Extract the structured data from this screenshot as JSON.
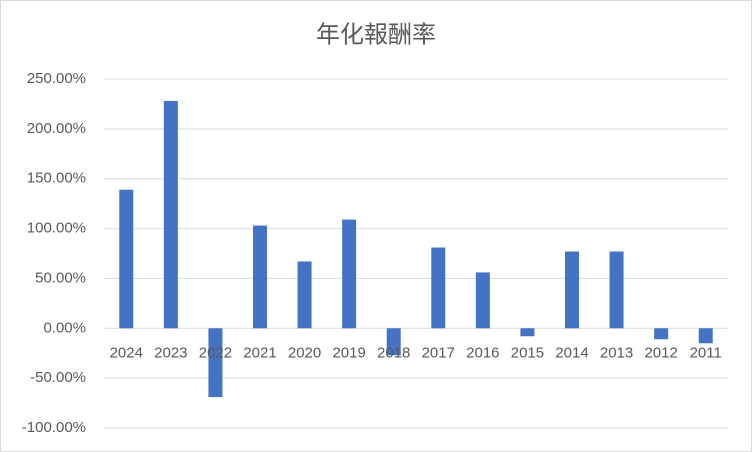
{
  "chart_data": {
    "type": "bar",
    "title": "年化報酬率",
    "categories": [
      "2024",
      "2023",
      "2022",
      "2021",
      "2020",
      "2019",
      "2018",
      "2017",
      "2016",
      "2015",
      "2014",
      "2013",
      "2012",
      "2011"
    ],
    "values": [
      139,
      228,
      -69,
      103,
      67,
      109,
      -27,
      81,
      56,
      -8,
      77,
      77,
      -11,
      -15
    ],
    "color": "#4472c4",
    "ylim": [
      -100,
      250
    ],
    "yticks": [
      {
        "value": -100,
        "label": "-100.00%"
      },
      {
        "value": -50,
        "label": "-50.00%"
      },
      {
        "value": 0,
        "label": "0.00%"
      },
      {
        "value": 50,
        "label": "50.00%"
      },
      {
        "value": 100,
        "label": "100.00%"
      },
      {
        "value": 150,
        "label": "150.00%"
      },
      {
        "value": 200,
        "label": "200.00%"
      },
      {
        "value": 250,
        "label": "250.00%"
      }
    ],
    "grid": true
  }
}
